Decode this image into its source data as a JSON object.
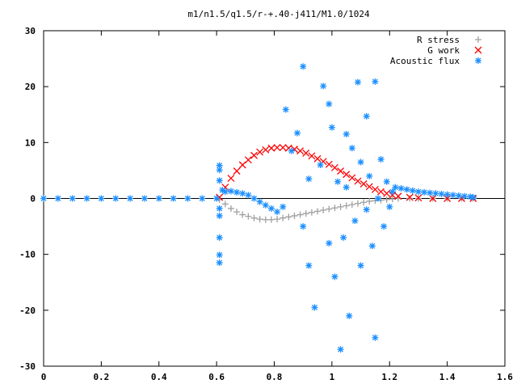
{
  "chart_data": {
    "type": "scatter",
    "title": "m1/n1.5/q1.5/r-+.40-j411/M1.0/1024",
    "xlabel": "",
    "ylabel": "",
    "xlim": [
      0,
      1.6
    ],
    "ylim": [
      -30,
      30
    ],
    "x_ticks": [
      0,
      0.2,
      0.4,
      0.6,
      0.8,
      1,
      1.2,
      1.4,
      1.6
    ],
    "y_ticks": [
      -30,
      -20,
      -10,
      0,
      10,
      20,
      30
    ],
    "grid": false,
    "legend_position": "top-right",
    "series": [
      {
        "name": "R stress",
        "marker": "plus",
        "color": "#a0a0a0",
        "points": [
          [
            0.61,
            -0.2
          ],
          [
            0.63,
            -1.0
          ],
          [
            0.65,
            -1.8
          ],
          [
            0.67,
            -2.4
          ],
          [
            0.69,
            -2.9
          ],
          [
            0.71,
            -3.2
          ],
          [
            0.73,
            -3.5
          ],
          [
            0.75,
            -3.7
          ],
          [
            0.77,
            -3.8
          ],
          [
            0.79,
            -3.8
          ],
          [
            0.81,
            -3.7
          ],
          [
            0.83,
            -3.5
          ],
          [
            0.85,
            -3.3
          ],
          [
            0.87,
            -3.1
          ],
          [
            0.89,
            -2.9
          ],
          [
            0.91,
            -2.7
          ],
          [
            0.93,
            -2.5
          ],
          [
            0.95,
            -2.3
          ],
          [
            0.97,
            -2.1
          ],
          [
            0.99,
            -1.9
          ],
          [
            1.01,
            -1.7
          ],
          [
            1.03,
            -1.5
          ],
          [
            1.05,
            -1.3
          ],
          [
            1.07,
            -1.1
          ],
          [
            1.09,
            -0.9
          ],
          [
            1.11,
            -0.7
          ],
          [
            1.13,
            -0.5
          ],
          [
            1.15,
            -0.4
          ],
          [
            1.17,
            -0.3
          ],
          [
            1.19,
            -0.2
          ],
          [
            1.21,
            -0.1
          ],
          [
            1.23,
            0.0
          ],
          [
            1.27,
            0.0
          ],
          [
            1.3,
            0.0
          ],
          [
            1.35,
            0.0
          ],
          [
            1.4,
            0.0
          ],
          [
            1.45,
            0.0
          ],
          [
            1.49,
            0.0
          ]
        ]
      },
      {
        "name": "G work",
        "marker": "cross",
        "color": "#ff0000",
        "points": [
          [
            0.61,
            0.2
          ],
          [
            0.63,
            2.0
          ],
          [
            0.65,
            3.6
          ],
          [
            0.67,
            4.9
          ],
          [
            0.69,
            6.0
          ],
          [
            0.71,
            6.9
          ],
          [
            0.73,
            7.7
          ],
          [
            0.75,
            8.3
          ],
          [
            0.77,
            8.7
          ],
          [
            0.79,
            9.0
          ],
          [
            0.81,
            9.1
          ],
          [
            0.83,
            9.1
          ],
          [
            0.85,
            9.0
          ],
          [
            0.87,
            8.8
          ],
          [
            0.89,
            8.5
          ],
          [
            0.91,
            8.1
          ],
          [
            0.93,
            7.6
          ],
          [
            0.95,
            7.1
          ],
          [
            0.97,
            6.6
          ],
          [
            0.99,
            6.1
          ],
          [
            1.01,
            5.5
          ],
          [
            1.03,
            4.9
          ],
          [
            1.05,
            4.3
          ],
          [
            1.07,
            3.7
          ],
          [
            1.09,
            3.1
          ],
          [
            1.11,
            2.6
          ],
          [
            1.13,
            2.1
          ],
          [
            1.15,
            1.6
          ],
          [
            1.17,
            1.2
          ],
          [
            1.19,
            0.9
          ],
          [
            1.21,
            0.6
          ],
          [
            1.23,
            0.4
          ],
          [
            1.27,
            0.2
          ],
          [
            1.3,
            0.1
          ],
          [
            1.35,
            0.0
          ],
          [
            1.4,
            0.0
          ],
          [
            1.45,
            0.0
          ],
          [
            1.49,
            0.0
          ]
        ]
      },
      {
        "name": "Acoustic flux",
        "marker": "star",
        "color": "#1e90ff",
        "points": [
          [
            0.0,
            0.0
          ],
          [
            0.05,
            0.0
          ],
          [
            0.1,
            0.0
          ],
          [
            0.15,
            0.0
          ],
          [
            0.2,
            0.0
          ],
          [
            0.25,
            0.0
          ],
          [
            0.3,
            0.0
          ],
          [
            0.35,
            0.0
          ],
          [
            0.4,
            0.0
          ],
          [
            0.45,
            0.0
          ],
          [
            0.5,
            0.0
          ],
          [
            0.55,
            0.0
          ],
          [
            0.6,
            0.0
          ],
          [
            0.61,
            5.9
          ],
          [
            0.61,
            5.1
          ],
          [
            0.61,
            3.2
          ],
          [
            0.61,
            -1.8
          ],
          [
            0.61,
            -3.1
          ],
          [
            0.61,
            -7.0
          ],
          [
            0.61,
            -10.1
          ],
          [
            0.61,
            -11.5
          ],
          [
            0.62,
            1.5
          ],
          [
            0.63,
            1.2
          ],
          [
            0.65,
            1.3
          ],
          [
            0.67,
            1.1
          ],
          [
            0.69,
            0.9
          ],
          [
            0.71,
            0.6
          ],
          [
            0.73,
            0.0
          ],
          [
            0.75,
            -0.6
          ],
          [
            0.77,
            -1.2
          ],
          [
            0.79,
            -1.8
          ],
          [
            0.81,
            -2.4
          ],
          [
            0.83,
            -1.5
          ],
          [
            0.84,
            15.9
          ],
          [
            0.86,
            8.5
          ],
          [
            0.88,
            11.7
          ],
          [
            0.9,
            23.6
          ],
          [
            0.9,
            -5.0
          ],
          [
            0.92,
            3.5
          ],
          [
            0.92,
            -12.0
          ],
          [
            0.94,
            -19.5
          ],
          [
            0.96,
            6.0
          ],
          [
            0.97,
            20.1
          ],
          [
            0.99,
            16.9
          ],
          [
            0.99,
            -8.0
          ],
          [
            1.0,
            12.7
          ],
          [
            1.01,
            -14.0
          ],
          [
            1.02,
            3.0
          ],
          [
            1.03,
            -27.0
          ],
          [
            1.04,
            -7.0
          ],
          [
            1.05,
            2.0
          ],
          [
            1.05,
            11.5
          ],
          [
            1.06,
            -21.0
          ],
          [
            1.07,
            9.0
          ],
          [
            1.08,
            -4.0
          ],
          [
            1.09,
            20.8
          ],
          [
            1.1,
            -12.0
          ],
          [
            1.1,
            6.5
          ],
          [
            1.12,
            -2.0
          ],
          [
            1.12,
            14.7
          ],
          [
            1.13,
            4.0
          ],
          [
            1.14,
            -8.5
          ],
          [
            1.15,
            20.9
          ],
          [
            1.15,
            -24.9
          ],
          [
            1.16,
            0.0
          ],
          [
            1.17,
            7.0
          ],
          [
            1.18,
            -5.0
          ],
          [
            1.19,
            3.0
          ],
          [
            1.2,
            -1.5
          ],
          [
            1.21,
            1.2
          ],
          [
            1.22,
            2.0
          ],
          [
            1.24,
            1.8
          ],
          [
            1.26,
            1.6
          ],
          [
            1.28,
            1.4
          ],
          [
            1.3,
            1.2
          ],
          [
            1.32,
            1.1
          ],
          [
            1.34,
            1.0
          ],
          [
            1.36,
            0.9
          ],
          [
            1.38,
            0.8
          ],
          [
            1.4,
            0.7
          ],
          [
            1.42,
            0.6
          ],
          [
            1.44,
            0.5
          ],
          [
            1.46,
            0.4
          ],
          [
            1.48,
            0.3
          ],
          [
            1.49,
            0.2
          ]
        ]
      }
    ]
  }
}
